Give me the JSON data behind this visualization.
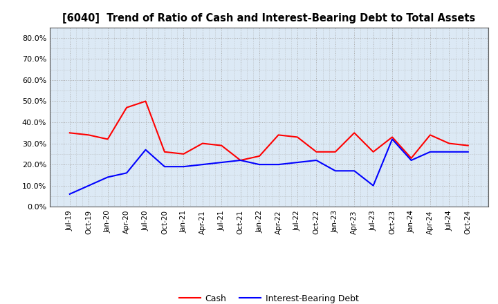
{
  "title": "[6040]  Trend of Ratio of Cash and Interest-Bearing Debt to Total Assets",
  "x_labels": [
    "Jul-19",
    "Oct-19",
    "Jan-20",
    "Apr-20",
    "Jul-20",
    "Oct-20",
    "Jan-21",
    "Apr-21",
    "Jul-21",
    "Oct-21",
    "Jan-22",
    "Apr-22",
    "Jul-22",
    "Oct-22",
    "Jan-23",
    "Apr-23",
    "Jul-23",
    "Oct-23",
    "Jan-24",
    "Apr-24",
    "Jul-24",
    "Oct-24"
  ],
  "cash": [
    0.35,
    0.34,
    0.32,
    0.47,
    0.5,
    0.26,
    0.25,
    0.3,
    0.29,
    0.22,
    0.24,
    0.34,
    0.33,
    0.26,
    0.26,
    0.35,
    0.26,
    0.33,
    0.23,
    0.34,
    0.3,
    0.29
  ],
  "interest_bearing_debt": [
    0.06,
    0.1,
    0.14,
    0.16,
    0.27,
    0.19,
    0.19,
    0.2,
    0.21,
    0.22,
    0.2,
    0.2,
    0.21,
    0.22,
    0.17,
    0.17,
    0.1,
    0.32,
    0.22,
    0.26,
    0.26,
    0.26
  ],
  "cash_color": "#ff0000",
  "debt_color": "#0000ff",
  "ylim": [
    0.0,
    0.85
  ],
  "yticks": [
    0.0,
    0.1,
    0.2,
    0.3,
    0.4,
    0.5,
    0.6,
    0.7,
    0.8
  ],
  "legend_cash": "Cash",
  "legend_debt": "Interest-Bearing Debt",
  "background_color": "#ffffff",
  "plot_bg_color": "#dce9f5",
  "grid_color": "#aaaaaa"
}
